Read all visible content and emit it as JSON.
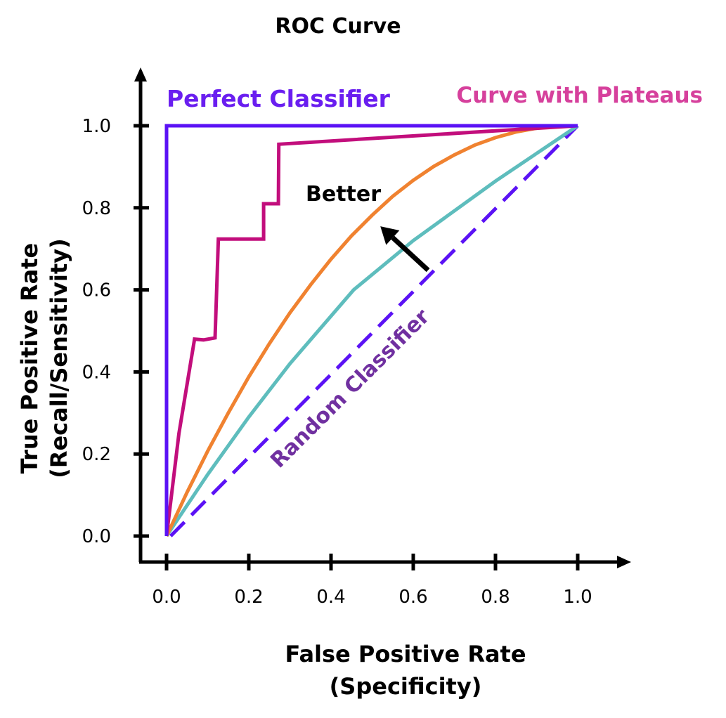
{
  "chart_data": {
    "type": "line",
    "title": "ROC Curve",
    "xlabel": [
      "False Positive Rate",
      "(Specificity)"
    ],
    "ylabel": [
      "True Positive Rate",
      "(Recall/Sensitivity)"
    ],
    "xlim": [
      0,
      1
    ],
    "ylim": [
      0,
      1
    ],
    "grid": false,
    "xticks": [
      "0.0",
      "0.2",
      "0.4",
      "0.6",
      "0.8",
      "1.0"
    ],
    "yticks": [
      "0.0",
      "0.2",
      "0.4",
      "0.6",
      "0.8",
      "1.0"
    ],
    "series": [
      {
        "name": "Perfect Classifier",
        "color": "#5B12F5",
        "label_color": "#6A1EF0",
        "dashed": false,
        "points": [
          [
            0,
            0
          ],
          [
            0,
            1
          ],
          [
            1,
            1
          ]
        ]
      },
      {
        "name": "Curve with Plateaus",
        "color": "#C20E7C",
        "label_color": "#D6409C",
        "dashed": false,
        "points": [
          [
            0,
            0
          ],
          [
            0.03,
            0.25
          ],
          [
            0.068,
            0.48
          ],
          [
            0.09,
            0.478
          ],
          [
            0.118,
            0.483
          ],
          [
            0.126,
            0.724
          ],
          [
            0.236,
            0.724
          ],
          [
            0.236,
            0.81
          ],
          [
            0.272,
            0.81
          ],
          [
            0.273,
            0.955
          ],
          [
            1,
            1
          ]
        ]
      },
      {
        "color": "#F08230",
        "dashed": false,
        "points": [
          [
            0,
            0
          ],
          [
            0.05,
            0.107
          ],
          [
            0.1,
            0.207
          ],
          [
            0.15,
            0.3
          ],
          [
            0.2,
            0.388
          ],
          [
            0.25,
            0.469
          ],
          [
            0.3,
            0.544
          ],
          [
            0.35,
            0.612
          ],
          [
            0.4,
            0.675
          ],
          [
            0.45,
            0.732
          ],
          [
            0.5,
            0.782
          ],
          [
            0.55,
            0.828
          ],
          [
            0.6,
            0.867
          ],
          [
            0.65,
            0.901
          ],
          [
            0.7,
            0.929
          ],
          [
            0.75,
            0.953
          ],
          [
            0.8,
            0.971
          ],
          [
            0.85,
            0.985
          ],
          [
            0.9,
            0.994
          ],
          [
            0.95,
            0.999
          ],
          [
            1,
            1
          ]
        ]
      },
      {
        "color": "#5EBDBD",
        "dashed": false,
        "points": [
          [
            0,
            0
          ],
          [
            0.1,
            0.15
          ],
          [
            0.2,
            0.29
          ],
          [
            0.3,
            0.42
          ],
          [
            0.455,
            0.6
          ],
          [
            0.6,
            0.72
          ],
          [
            0.8,
            0.865
          ],
          [
            1,
            1
          ]
        ]
      },
      {
        "name": "Random Classifier",
        "color": "#5B12F5",
        "label_color": "#7030A0",
        "dashed": true,
        "points": [
          [
            0.01,
            0
          ],
          [
            1,
            1
          ]
        ]
      }
    ],
    "annotations": [
      {
        "text": "Better",
        "arrow_from": [
          0.636,
          0.648
        ],
        "arrow_to": [
          0.52,
          0.755
        ]
      }
    ]
  }
}
